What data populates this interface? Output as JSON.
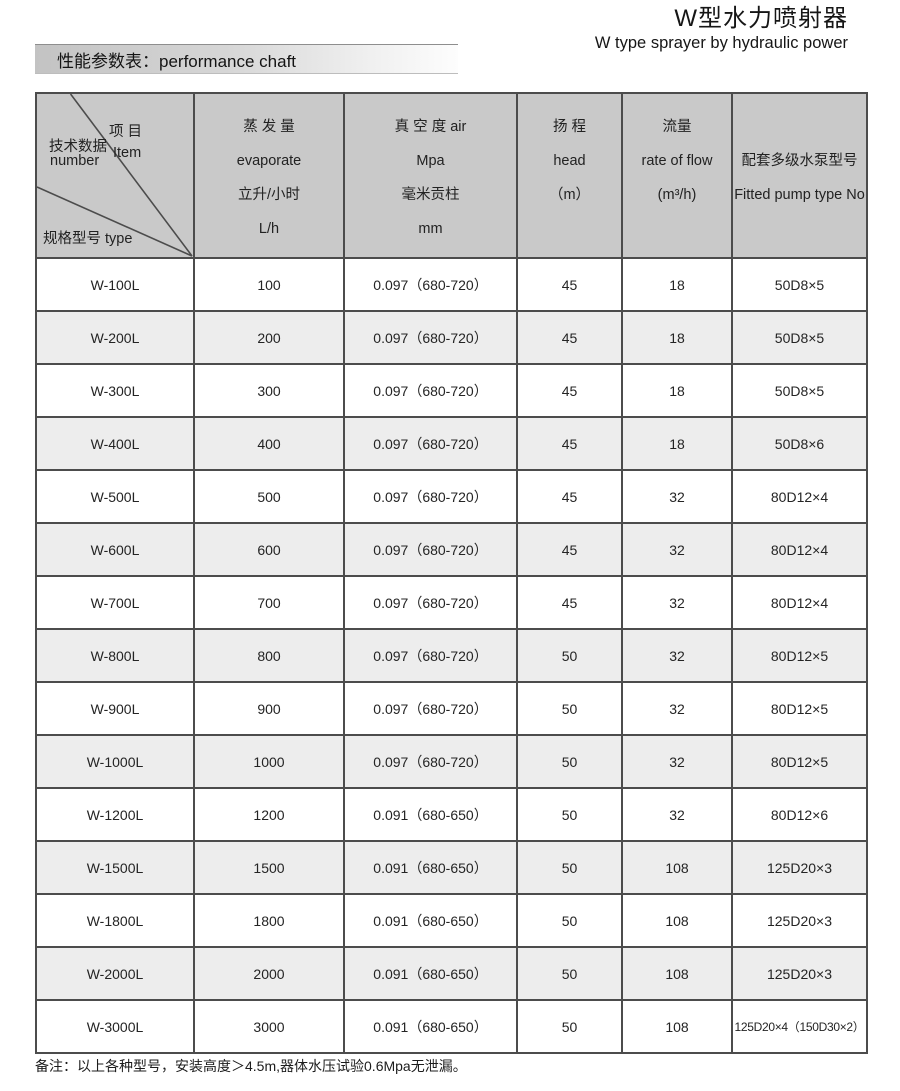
{
  "page": {
    "title_cn": "W型水力喷射器",
    "title_en": "W type sprayer by hydraulic power",
    "banner": "性能参数表：performance chaft",
    "footnote": "备注：以上各种型号，安装高度＞4.5m,器体水压试验0.6Mpa无泄漏。"
  },
  "colors": {
    "header_bg": "#c9c9c9",
    "alt_row_bg": "#ededed",
    "border": "#4c4c4c"
  },
  "table": {
    "corner": {
      "item_cn": "项 目",
      "item_en": "Item",
      "number_cn": "技术数据",
      "number_en": "number",
      "type": "规格型号 type"
    },
    "columns": [
      {
        "lines": [
          "蒸 发 量",
          "evaporate",
          "立升/小时",
          "L/h"
        ]
      },
      {
        "lines": [
          "真 空 度 air",
          "Mpa",
          "毫米贡柱",
          "mm"
        ]
      },
      {
        "lines": [
          "扬 程",
          "head",
          "（m）"
        ]
      },
      {
        "lines": [
          "流量",
          "rate of flow",
          "(m³/h)"
        ]
      },
      {
        "lines": [
          "配套多级水泵型号",
          "Fitted pump type No"
        ]
      }
    ],
    "rows": [
      [
        "W-100L",
        "100",
        "0.097（680-720）",
        "45",
        "18",
        "50D8×5"
      ],
      [
        "W-200L",
        "200",
        "0.097（680-720）",
        "45",
        "18",
        "50D8×5"
      ],
      [
        "W-300L",
        "300",
        "0.097（680-720）",
        "45",
        "18",
        "50D8×5"
      ],
      [
        "W-400L",
        "400",
        "0.097（680-720）",
        "45",
        "18",
        "50D8×6"
      ],
      [
        "W-500L",
        "500",
        "0.097（680-720）",
        "45",
        "32",
        "80D12×4"
      ],
      [
        "W-600L",
        "600",
        "0.097（680-720）",
        "45",
        "32",
        "80D12×4"
      ],
      [
        "W-700L",
        "700",
        "0.097（680-720）",
        "45",
        "32",
        "80D12×4"
      ],
      [
        "W-800L",
        "800",
        "0.097（680-720）",
        "50",
        "32",
        "80D12×5"
      ],
      [
        "W-900L",
        "900",
        "0.097（680-720）",
        "50",
        "32",
        "80D12×5"
      ],
      [
        "W-1000L",
        "1000",
        "0.097（680-720）",
        "50",
        "32",
        "80D12×5"
      ],
      [
        "W-1200L",
        "1200",
        "0.091（680-650）",
        "50",
        "32",
        "80D12×6"
      ],
      [
        "W-1500L",
        "1500",
        "0.091（680-650）",
        "50",
        "108",
        "125D20×3"
      ],
      [
        "W-1800L",
        "1800",
        "0.091（680-650）",
        "50",
        "108",
        "125D20×3"
      ],
      [
        "W-2000L",
        "2000",
        "0.091（680-650）",
        "50",
        "108",
        "125D20×3"
      ],
      [
        "W-3000L",
        "3000",
        "0.091（680-650）",
        "50",
        "108",
        "125D20×4（150D30×2）"
      ]
    ]
  }
}
